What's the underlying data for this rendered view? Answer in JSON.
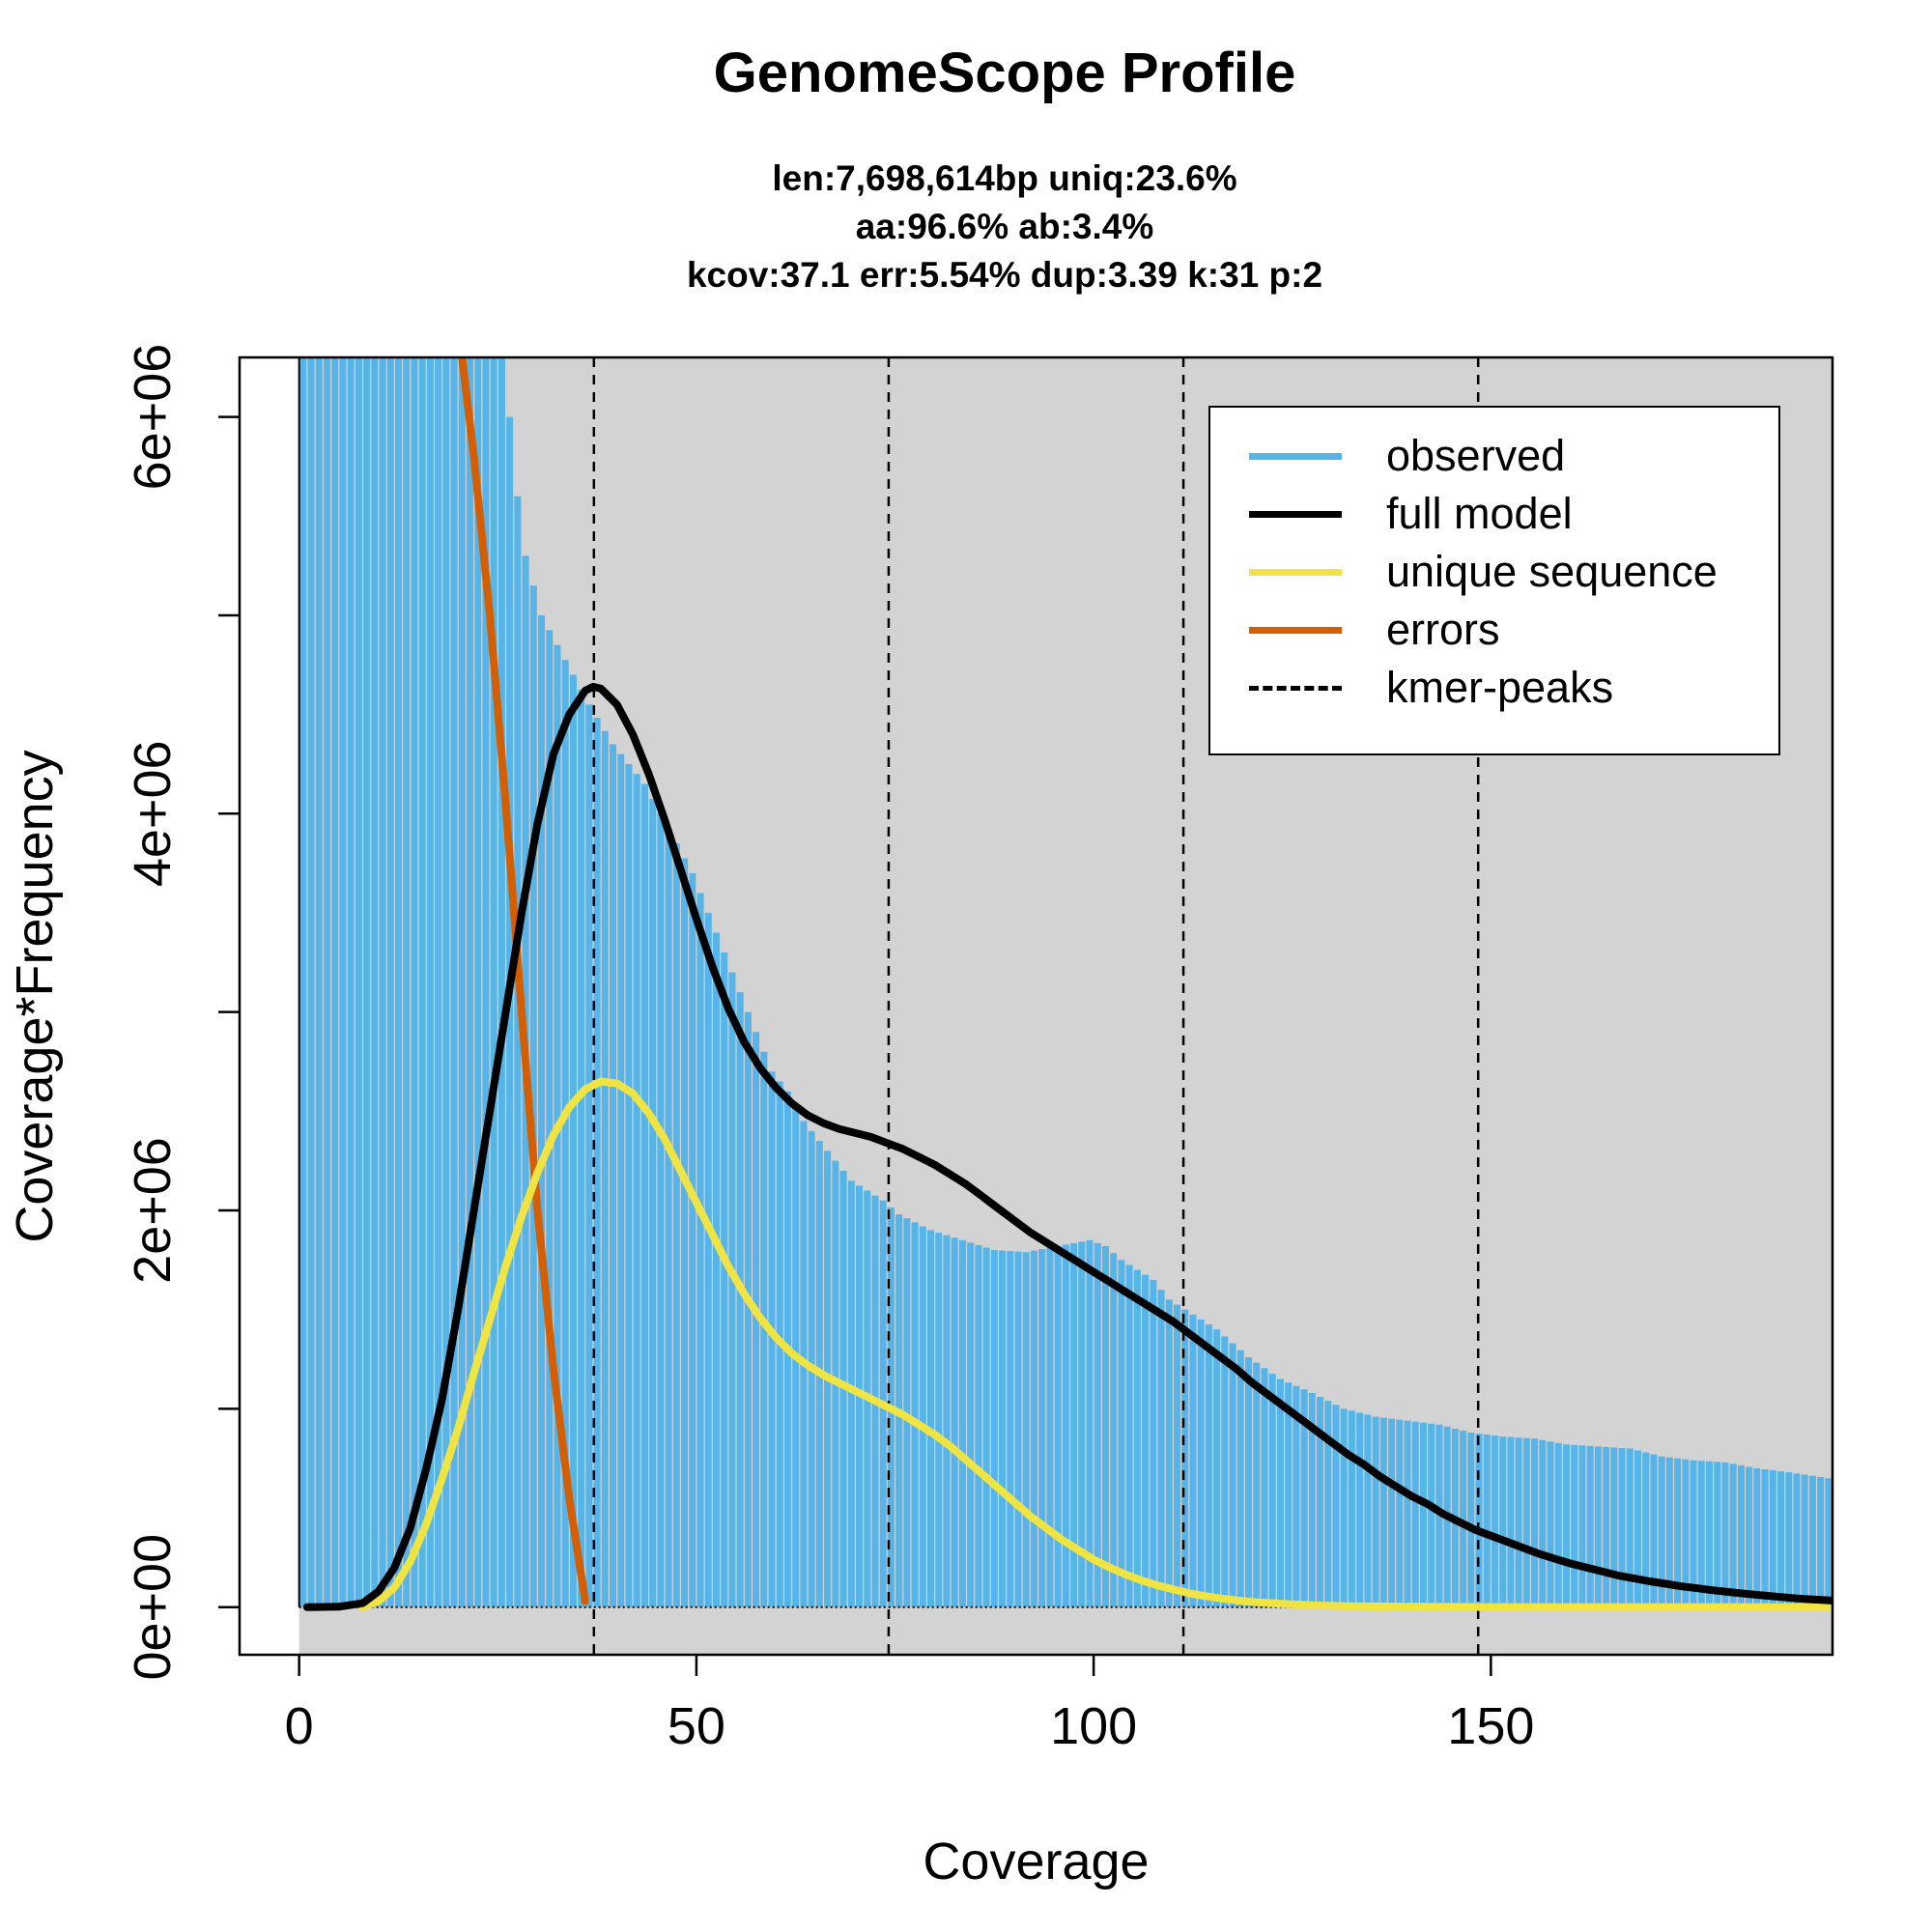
{
  "colors": {
    "observed": "#56B4E9",
    "full_model": "#000000",
    "unique": "#F0E442",
    "errors": "#D55E00",
    "panel_bg": "#D3D3D3"
  },
  "chart_data": {
    "type": "bar",
    "title": "GenomeScope Profile",
    "subtitle_lines": [
      "len:7,698,614bp uniq:23.6%",
      "aa:96.6% ab:3.4%",
      "kcov:37.1 err:5.54%  dup:3.39  k:31 p:2"
    ],
    "xlabel": "Coverage",
    "ylabel": "Coverage*Frequency",
    "xlim": [
      -7.5,
      193
    ],
    "ylim": [
      -240000,
      6300000
    ],
    "x_ticks": [
      0,
      50,
      100,
      150
    ],
    "x_tick_labels": [
      "0",
      "50",
      "100",
      "150"
    ],
    "y_ticks": [
      0,
      1000000,
      2000000,
      3000000,
      4000000,
      5000000,
      6000000
    ],
    "y_tick_labels": [
      "0e+00",
      "2e+06",
      "4e+06",
      "6e+06"
    ],
    "y_labeled_ticks": [
      0,
      2000000,
      4000000,
      6000000
    ],
    "grid": false,
    "legend_position": "top-right",
    "kmer_peaks": [
      37.1,
      74.2,
      111.3,
      148.4
    ],
    "series": [
      {
        "name": "observed",
        "kind": "bars",
        "x_start": 1,
        "x_end": 193,
        "anchors": [
          [
            1,
            9000000
          ],
          [
            26,
            6300000
          ],
          [
            27,
            6000000
          ],
          [
            28,
            5600000
          ],
          [
            29,
            5300000
          ],
          [
            30,
            5150000
          ],
          [
            31,
            5000000
          ],
          [
            33,
            4850000
          ],
          [
            35,
            4700000
          ],
          [
            37,
            4550000
          ],
          [
            40,
            4350000
          ],
          [
            44,
            4150000
          ],
          [
            46,
            4000000
          ],
          [
            48,
            3850000
          ],
          [
            50,
            3700000
          ],
          [
            52,
            3500000
          ],
          [
            54,
            3300000
          ],
          [
            56,
            3100000
          ],
          [
            58,
            2900000
          ],
          [
            60,
            2700000
          ],
          [
            62,
            2600000
          ],
          [
            64,
            2450000
          ],
          [
            66,
            2350000
          ],
          [
            68,
            2250000
          ],
          [
            70,
            2150000
          ],
          [
            72,
            2100000
          ],
          [
            74,
            2050000
          ],
          [
            76,
            1980000
          ],
          [
            80,
            1900000
          ],
          [
            84,
            1850000
          ],
          [
            88,
            1800000
          ],
          [
            92,
            1790000
          ],
          [
            96,
            1820000
          ],
          [
            100,
            1850000
          ],
          [
            102,
            1820000
          ],
          [
            104,
            1750000
          ],
          [
            106,
            1700000
          ],
          [
            108,
            1650000
          ],
          [
            110,
            1550000
          ],
          [
            112,
            1500000
          ],
          [
            114,
            1450000
          ],
          [
            116,
            1400000
          ],
          [
            118,
            1330000
          ],
          [
            120,
            1260000
          ],
          [
            124,
            1150000
          ],
          [
            128,
            1080000
          ],
          [
            132,
            1000000
          ],
          [
            136,
            960000
          ],
          [
            140,
            940000
          ],
          [
            144,
            920000
          ],
          [
            148,
            880000
          ],
          [
            152,
            860000
          ],
          [
            156,
            850000
          ],
          [
            160,
            820000
          ],
          [
            164,
            810000
          ],
          [
            168,
            800000
          ],
          [
            172,
            760000
          ],
          [
            176,
            740000
          ],
          [
            180,
            730000
          ],
          [
            184,
            700000
          ],
          [
            188,
            680000
          ],
          [
            193,
            650000
          ]
        ]
      },
      {
        "name": "full model",
        "kind": "line",
        "points": [
          [
            1,
            0
          ],
          [
            5,
            2000
          ],
          [
            8,
            20000
          ],
          [
            10,
            80000
          ],
          [
            12,
            200000
          ],
          [
            14,
            400000
          ],
          [
            16,
            700000
          ],
          [
            18,
            1050000
          ],
          [
            20,
            1500000
          ],
          [
            22,
            2000000
          ],
          [
            24,
            2500000
          ],
          [
            26,
            3000000
          ],
          [
            28,
            3500000
          ],
          [
            30,
            3950000
          ],
          [
            32,
            4300000
          ],
          [
            34,
            4500000
          ],
          [
            36,
            4620000
          ],
          [
            37,
            4640000
          ],
          [
            38,
            4630000
          ],
          [
            40,
            4550000
          ],
          [
            42,
            4400000
          ],
          [
            44,
            4200000
          ],
          [
            46,
            3970000
          ],
          [
            48,
            3720000
          ],
          [
            50,
            3470000
          ],
          [
            52,
            3230000
          ],
          [
            54,
            3020000
          ],
          [
            56,
            2850000
          ],
          [
            58,
            2720000
          ],
          [
            60,
            2620000
          ],
          [
            62,
            2540000
          ],
          [
            64,
            2480000
          ],
          [
            66,
            2440000
          ],
          [
            68,
            2410000
          ],
          [
            70,
            2390000
          ],
          [
            72,
            2370000
          ],
          [
            74,
            2340000
          ],
          [
            76,
            2310000
          ],
          [
            78,
            2270000
          ],
          [
            80,
            2230000
          ],
          [
            82,
            2180000
          ],
          [
            84,
            2130000
          ],
          [
            86,
            2070000
          ],
          [
            88,
            2010000
          ],
          [
            90,
            1950000
          ],
          [
            92,
            1890000
          ],
          [
            94,
            1840000
          ],
          [
            96,
            1790000
          ],
          [
            98,
            1740000
          ],
          [
            100,
            1690000
          ],
          [
            102,
            1640000
          ],
          [
            104,
            1590000
          ],
          [
            106,
            1540000
          ],
          [
            108,
            1490000
          ],
          [
            110,
            1440000
          ],
          [
            112,
            1380000
          ],
          [
            114,
            1320000
          ],
          [
            116,
            1260000
          ],
          [
            118,
            1200000
          ],
          [
            120,
            1130000
          ],
          [
            122,
            1070000
          ],
          [
            124,
            1010000
          ],
          [
            126,
            950000
          ],
          [
            128,
            890000
          ],
          [
            130,
            830000
          ],
          [
            132,
            770000
          ],
          [
            134,
            720000
          ],
          [
            136,
            660000
          ],
          [
            138,
            610000
          ],
          [
            140,
            560000
          ],
          [
            142,
            520000
          ],
          [
            144,
            470000
          ],
          [
            146,
            430000
          ],
          [
            148,
            390000
          ],
          [
            150,
            360000
          ],
          [
            152,
            330000
          ],
          [
            154,
            300000
          ],
          [
            156,
            270000
          ],
          [
            158,
            245000
          ],
          [
            160,
            220000
          ],
          [
            162,
            200000
          ],
          [
            164,
            180000
          ],
          [
            166,
            160000
          ],
          [
            168,
            145000
          ],
          [
            170,
            130000
          ],
          [
            172,
            118000
          ],
          [
            174,
            105000
          ],
          [
            176,
            95000
          ],
          [
            178,
            85000
          ],
          [
            180,
            76000
          ],
          [
            182,
            68000
          ],
          [
            184,
            60000
          ],
          [
            186,
            53000
          ],
          [
            188,
            46000
          ],
          [
            190,
            40000
          ],
          [
            193,
            33000
          ]
        ]
      },
      {
        "name": "unique sequence",
        "kind": "line",
        "points": [
          [
            8,
            0
          ],
          [
            10,
            30000
          ],
          [
            12,
            100000
          ],
          [
            14,
            230000
          ],
          [
            16,
            420000
          ],
          [
            18,
            650000
          ],
          [
            20,
            900000
          ],
          [
            22,
            1180000
          ],
          [
            24,
            1450000
          ],
          [
            26,
            1720000
          ],
          [
            28,
            1970000
          ],
          [
            30,
            2190000
          ],
          [
            32,
            2380000
          ],
          [
            34,
            2520000
          ],
          [
            36,
            2610000
          ],
          [
            38,
            2650000
          ],
          [
            40,
            2640000
          ],
          [
            42,
            2590000
          ],
          [
            44,
            2490000
          ],
          [
            46,
            2360000
          ],
          [
            48,
            2200000
          ],
          [
            50,
            2040000
          ],
          [
            52,
            1880000
          ],
          [
            54,
            1720000
          ],
          [
            56,
            1580000
          ],
          [
            58,
            1460000
          ],
          [
            60,
            1360000
          ],
          [
            62,
            1280000
          ],
          [
            64,
            1220000
          ],
          [
            66,
            1170000
          ],
          [
            68,
            1130000
          ],
          [
            70,
            1090000
          ],
          [
            72,
            1050000
          ],
          [
            74,
            1010000
          ],
          [
            76,
            970000
          ],
          [
            78,
            920000
          ],
          [
            80,
            870000
          ],
          [
            82,
            810000
          ],
          [
            84,
            740000
          ],
          [
            86,
            670000
          ],
          [
            88,
            600000
          ],
          [
            90,
            530000
          ],
          [
            92,
            460000
          ],
          [
            94,
            400000
          ],
          [
            96,
            340000
          ],
          [
            98,
            290000
          ],
          [
            100,
            240000
          ],
          [
            102,
            200000
          ],
          [
            104,
            165000
          ],
          [
            106,
            135000
          ],
          [
            108,
            110000
          ],
          [
            110,
            90000
          ],
          [
            112,
            70000
          ],
          [
            114,
            56000
          ],
          [
            116,
            44000
          ],
          [
            118,
            34000
          ],
          [
            120,
            26000
          ],
          [
            124,
            16000
          ],
          [
            128,
            9000
          ],
          [
            132,
            5000
          ],
          [
            140,
            2000
          ],
          [
            150,
            500
          ],
          [
            160,
            0
          ],
          [
            193,
            0
          ]
        ]
      },
      {
        "name": "errors",
        "kind": "line",
        "points": [
          [
            20.5,
            6300000
          ],
          [
            22,
            5800000
          ],
          [
            24,
            5000000
          ],
          [
            26,
            4050000
          ],
          [
            28,
            3000000
          ],
          [
            30,
            2000000
          ],
          [
            32,
            1200000
          ],
          [
            34,
            550000
          ],
          [
            36,
            30000
          ]
        ]
      },
      {
        "name": "kmer-peaks",
        "kind": "vlines"
      }
    ]
  }
}
